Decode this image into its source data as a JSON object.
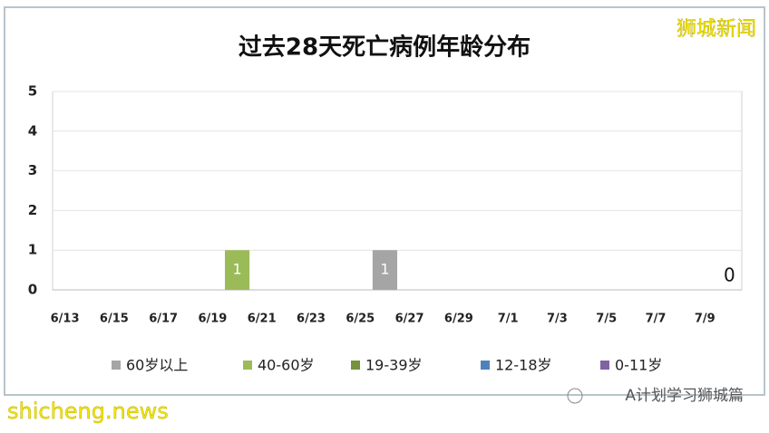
{
  "chart_data": {
    "type": "bar",
    "stacked": true,
    "title": "过去28天死亡病例年龄分布",
    "categories": [
      "6/13",
      null,
      "6/15",
      null,
      "6/17",
      null,
      "6/19",
      null,
      "6/21",
      null,
      "6/23",
      null,
      "6/25",
      null,
      "6/27",
      null,
      "6/29",
      null,
      "7/1",
      null,
      "7/3",
      null,
      "7/5",
      null,
      "7/7",
      null,
      "7/9",
      null
    ],
    "series": [
      {
        "name": "60岁以上",
        "color": "#a5a5a5",
        "values": [
          0,
          0,
          0,
          0,
          0,
          0,
          0,
          0,
          0,
          0,
          0,
          0,
          0,
          1,
          0,
          0,
          0,
          0,
          0,
          0,
          0,
          0,
          0,
          0,
          0,
          0,
          0,
          0
        ],
        "value_labels": [
          null,
          null,
          null,
          null,
          null,
          null,
          null,
          null,
          null,
          null,
          null,
          null,
          null,
          "1",
          null,
          null,
          null,
          null,
          null,
          null,
          null,
          null,
          null,
          null,
          null,
          null,
          null,
          "0"
        ]
      },
      {
        "name": "40-60岁",
        "color": "#9bbb59",
        "values": [
          0,
          0,
          0,
          0,
          0,
          0,
          0,
          1,
          0,
          0,
          0,
          0,
          0,
          0,
          0,
          0,
          0,
          0,
          0,
          0,
          0,
          0,
          0,
          0,
          0,
          0,
          0,
          0
        ],
        "value_labels": [
          null,
          null,
          null,
          null,
          null,
          null,
          null,
          "1",
          null,
          null,
          null,
          null,
          null,
          null,
          null,
          null,
          null,
          null,
          null,
          null,
          null,
          null,
          null,
          null,
          null,
          null,
          null,
          null
        ]
      },
      {
        "name": "19-39岁",
        "color": "#76923c",
        "values": [
          0,
          0,
          0,
          0,
          0,
          0,
          0,
          0,
          0,
          0,
          0,
          0,
          0,
          0,
          0,
          0,
          0,
          0,
          0,
          0,
          0,
          0,
          0,
          0,
          0,
          0,
          0,
          0
        ]
      },
      {
        "name": "12-18岁",
        "color": "#4f81bd",
        "values": [
          0,
          0,
          0,
          0,
          0,
          0,
          0,
          0,
          0,
          0,
          0,
          0,
          0,
          0,
          0,
          0,
          0,
          0,
          0,
          0,
          0,
          0,
          0,
          0,
          0,
          0,
          0,
          0
        ]
      },
      {
        "name": "0-11岁",
        "color": "#8064a2",
        "values": [
          0,
          0,
          0,
          0,
          0,
          0,
          0,
          0,
          0,
          0,
          0,
          0,
          0,
          0,
          0,
          0,
          0,
          0,
          0,
          0,
          0,
          0,
          0,
          0,
          0,
          0,
          0,
          0
        ]
      }
    ],
    "ylim": [
      0,
      5
    ],
    "yticks": [
      0,
      1,
      2,
      3,
      4,
      5
    ],
    "grid": true,
    "legend": "bottom"
  },
  "watermarks": {
    "top_right": "狮城新闻",
    "bottom_left": "shicheng.news",
    "bottom_right": "A计划学习狮城篇"
  }
}
